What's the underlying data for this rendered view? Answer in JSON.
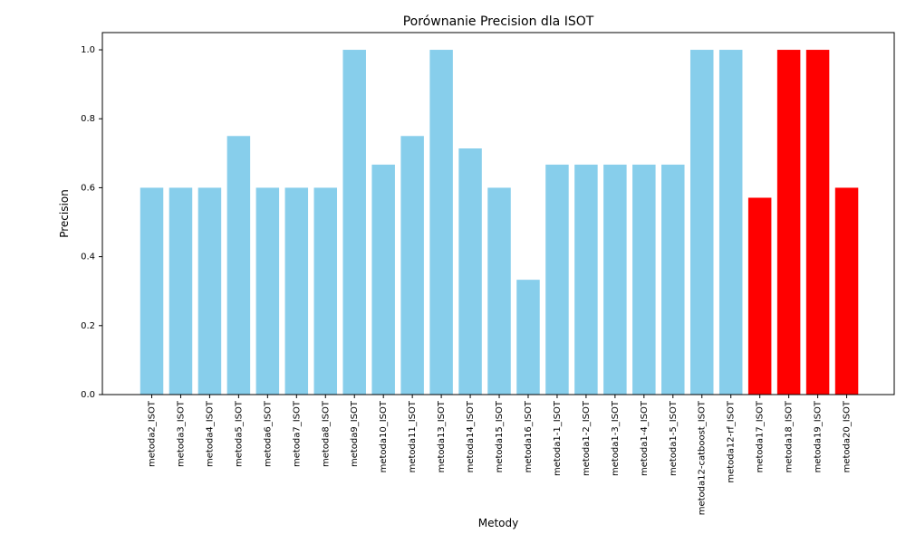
{
  "chart_data": {
    "type": "bar",
    "title": "Porównanie Precision dla ISOT",
    "xlabel": "Metody",
    "ylabel": "Precision",
    "ylim": [
      0,
      1.05
    ],
    "yticks": [
      "0.0",
      "0.2",
      "0.4",
      "0.6",
      "0.8",
      "1.0"
    ],
    "grid": false,
    "categories": [
      "metoda2_ISOT",
      "metoda3_ISOT",
      "metoda4_ISOT",
      "metoda5_ISOT",
      "metoda6_ISOT",
      "metoda7_ISOT",
      "metoda8_ISOT",
      "metoda9_ISOT",
      "metoda10_ISOT",
      "metoda11_ISOT",
      "metoda13_ISOT",
      "metoda14_ISOT",
      "metoda15_ISOT",
      "metoda16_ISOT",
      "metoda1-1_ISOT",
      "metoda1-2_ISOT",
      "metoda1-3_ISOT",
      "metoda1-4_ISOT",
      "metoda1-5_ISOT",
      "metoda12-catboost_ISOT",
      "metoda12-rf_ISOT",
      "metoda17_ISOT",
      "metoda18_ISOT",
      "metoda19_ISOT",
      "metoda20_ISOT"
    ],
    "values": [
      0.6,
      0.6,
      0.6,
      0.75,
      0.6,
      0.6,
      0.6,
      1.0,
      0.667,
      0.75,
      1.0,
      0.714,
      0.6,
      0.333,
      0.667,
      0.667,
      0.667,
      0.667,
      0.667,
      1.0,
      1.0,
      0.571,
      1.0,
      1.0,
      0.6
    ],
    "colors": [
      "#87ceeb",
      "#87ceeb",
      "#87ceeb",
      "#87ceeb",
      "#87ceeb",
      "#87ceeb",
      "#87ceeb",
      "#87ceeb",
      "#87ceeb",
      "#87ceeb",
      "#87ceeb",
      "#87ceeb",
      "#87ceeb",
      "#87ceeb",
      "#87ceeb",
      "#87ceeb",
      "#87ceeb",
      "#87ceeb",
      "#87ceeb",
      "#87ceeb",
      "#87ceeb",
      "#ff0000",
      "#ff0000",
      "#ff0000",
      "#ff0000"
    ]
  }
}
